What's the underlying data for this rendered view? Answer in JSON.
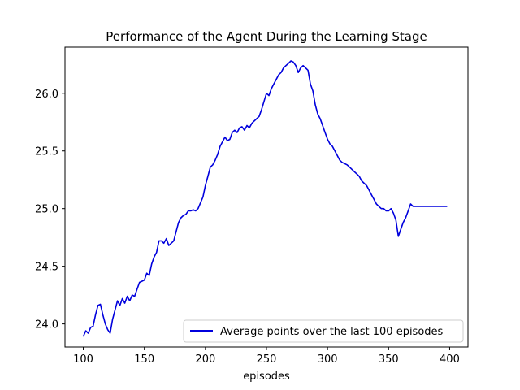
{
  "chart_data": {
    "type": "line",
    "title": "Performance of the Agent During the Learning Stage",
    "xlabel": "episodes",
    "ylabel": "",
    "xlim": [
      85,
      415
    ],
    "ylim": [
      23.8,
      26.4
    ],
    "xticks": [
      100,
      150,
      200,
      250,
      300,
      350,
      400
    ],
    "yticks": [
      24.0,
      24.5,
      25.0,
      25.5,
      26.0
    ],
    "ytick_labels": [
      "24.0",
      "24.5",
      "25.0",
      "25.5",
      "26.0"
    ],
    "grid": false,
    "legend_position": "lower-right",
    "series": [
      {
        "name": "Average points over the last 100 episodes",
        "color": "#0000dd",
        "x": [
          100,
          102,
          104,
          106,
          108,
          110,
          112,
          114,
          116,
          118,
          120,
          122,
          124,
          126,
          128,
          130,
          132,
          134,
          136,
          138,
          140,
          142,
          144,
          146,
          148,
          150,
          152,
          154,
          156,
          158,
          160,
          162,
          164,
          166,
          168,
          170,
          172,
          174,
          176,
          178,
          180,
          182,
          184,
          186,
          188,
          190,
          192,
          194,
          196,
          198,
          200,
          202,
          204,
          206,
          208,
          210,
          212,
          214,
          216,
          218,
          220,
          222,
          224,
          226,
          228,
          230,
          232,
          234,
          236,
          238,
          240,
          242,
          244,
          246,
          248,
          250,
          252,
          254,
          256,
          258,
          260,
          262,
          264,
          266,
          268,
          270,
          272,
          274,
          276,
          278,
          280,
          282,
          284,
          286,
          288,
          290,
          292,
          294,
          296,
          298,
          300,
          302,
          304,
          306,
          308,
          310,
          312,
          314,
          316,
          318,
          320,
          322,
          324,
          326,
          328,
          330,
          332,
          334,
          336,
          338,
          340,
          342,
          344,
          346,
          348,
          350,
          352,
          354,
          356,
          358,
          360,
          362,
          364,
          366,
          368,
          370,
          372,
          374,
          376,
          378,
          380,
          382,
          384,
          386,
          388,
          390,
          392,
          394,
          396,
          398
        ],
        "y": [
          23.89,
          23.94,
          23.92,
          23.97,
          23.98,
          24.08,
          24.16,
          24.17,
          24.08,
          24.0,
          23.95,
          23.92,
          24.04,
          24.12,
          24.2,
          24.16,
          24.22,
          24.18,
          24.24,
          24.2,
          24.25,
          24.24,
          24.3,
          24.36,
          24.37,
          24.38,
          24.44,
          24.42,
          24.52,
          24.58,
          24.62,
          24.72,
          24.72,
          24.7,
          24.74,
          24.68,
          24.7,
          24.72,
          24.8,
          24.88,
          24.92,
          24.94,
          24.95,
          24.98,
          24.98,
          24.99,
          24.98,
          25.0,
          25.05,
          25.1,
          25.2,
          25.28,
          25.36,
          25.38,
          25.42,
          25.47,
          25.54,
          25.58,
          25.62,
          25.59,
          25.6,
          25.66,
          25.68,
          25.66,
          25.7,
          25.71,
          25.68,
          25.72,
          25.7,
          25.74,
          25.76,
          25.78,
          25.8,
          25.86,
          25.93,
          26.0,
          25.98,
          26.04,
          26.08,
          26.12,
          26.16,
          26.18,
          26.22,
          26.24,
          26.26,
          26.28,
          26.27,
          26.24,
          26.18,
          26.22,
          26.24,
          26.22,
          26.2,
          26.08,
          26.02,
          25.9,
          25.82,
          25.78,
          25.72,
          25.66,
          25.6,
          25.56,
          25.54,
          25.5,
          25.46,
          25.42,
          25.4,
          25.39,
          25.38,
          25.36,
          25.34,
          25.32,
          25.3,
          25.28,
          25.24,
          25.22,
          25.2,
          25.16,
          25.12,
          25.08,
          25.04,
          25.02,
          25.0,
          25.0,
          24.98,
          24.98,
          25.0,
          24.96,
          24.9,
          24.76,
          24.82,
          24.88,
          24.92,
          24.98,
          25.04,
          25.02,
          25.02,
          25.02,
          25.02,
          25.02,
          25.02,
          25.02,
          25.02,
          25.02,
          25.02,
          25.02,
          25.02,
          25.02,
          25.02,
          25.02
        ]
      }
    ]
  }
}
